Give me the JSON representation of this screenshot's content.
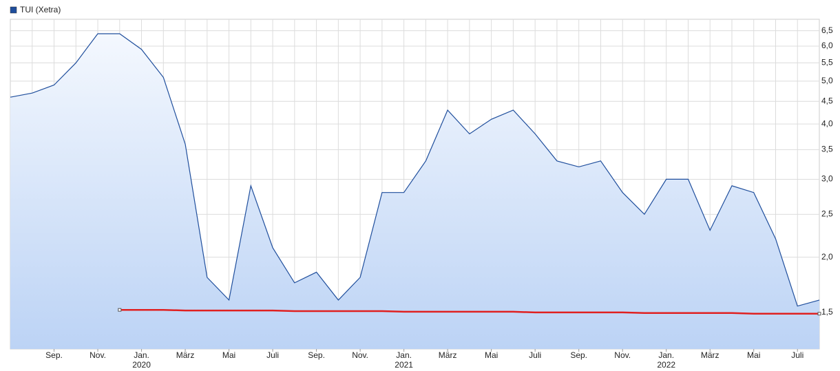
{
  "chart_data": {
    "type": "line",
    "log_scale": true,
    "grid": true,
    "legend": "top-left",
    "x": [
      "2019-07",
      "2019-08",
      "2019-09",
      "2019-10",
      "2019-11",
      "2019-12",
      "2020-01",
      "2020-02",
      "2020-03",
      "2020-04",
      "2020-05",
      "2020-06",
      "2020-07",
      "2020-08",
      "2020-09",
      "2020-10",
      "2020-11",
      "2020-12",
      "2021-01",
      "2021-02",
      "2021-03",
      "2021-04",
      "2021-05",
      "2021-06",
      "2021-07",
      "2021-08",
      "2021-09",
      "2021-10",
      "2021-11",
      "2021-12",
      "2022-01",
      "2022-02",
      "2022-03",
      "2022-04",
      "2022-05",
      "2022-06",
      "2022-07",
      "2022-08"
    ],
    "series": [
      {
        "name": "TUI (Xetra)",
        "color": "#1f4e9c",
        "values": [
          4.6,
          4.7,
          4.9,
          5.5,
          6.4,
          6.4,
          5.9,
          5.1,
          3.6,
          1.8,
          1.6,
          2.9,
          2.1,
          1.75,
          1.85,
          1.6,
          1.8,
          2.8,
          2.8,
          3.3,
          4.3,
          3.8,
          4.1,
          4.3,
          3.8,
          3.3,
          3.2,
          3.3,
          2.8,
          2.5,
          3.0,
          3.0,
          2.3,
          2.9,
          2.8,
          2.2,
          1.55,
          1.6
        ]
      },
      {
        "color": "#e02020",
        "values": [
          null,
          null,
          null,
          null,
          null,
          1.52,
          1.52,
          1.52,
          1.515,
          1.515,
          1.515,
          1.515,
          1.515,
          1.51,
          1.51,
          1.51,
          1.51,
          1.51,
          1.505,
          1.505,
          1.505,
          1.505,
          1.505,
          1.505,
          1.5,
          1.5,
          1.5,
          1.5,
          1.5,
          1.495,
          1.495,
          1.495,
          1.495,
          1.495,
          1.49,
          1.49,
          1.49,
          1.49
        ]
      }
    ],
    "xlim": [
      "2019-07",
      "2022-08"
    ],
    "xticks": [
      {
        "value": "2019-09",
        "label": "Sep."
      },
      {
        "value": "2019-11",
        "label": "Nov."
      },
      {
        "value": "2020-01",
        "label": "Jan.",
        "year": "2020"
      },
      {
        "value": "2020-03",
        "label": "März"
      },
      {
        "value": "2020-05",
        "label": "Mai"
      },
      {
        "value": "2020-07",
        "label": "Juli"
      },
      {
        "value": "2020-09",
        "label": "Sep."
      },
      {
        "value": "2020-11",
        "label": "Nov."
      },
      {
        "value": "2021-01",
        "label": "Jan.",
        "year": "2021"
      },
      {
        "value": "2021-03",
        "label": "März"
      },
      {
        "value": "2021-05",
        "label": "Mai"
      },
      {
        "value": "2021-07",
        "label": "Juli"
      },
      {
        "value": "2021-09",
        "label": "Sep."
      },
      {
        "value": "2021-11",
        "label": "Nov."
      },
      {
        "value": "2022-01",
        "label": "Jan.",
        "year": "2022"
      },
      {
        "value": "2022-03",
        "label": "März"
      },
      {
        "value": "2022-05",
        "label": "Mai"
      },
      {
        "value": "2022-07",
        "label": "Juli"
      }
    ],
    "ylim": [
      1.24,
      6.9
    ],
    "yticks": [
      {
        "value": 1.5,
        "label": "1,5"
      },
      {
        "value": 2,
        "label": "2,0"
      },
      {
        "value": 2.5,
        "label": "2,5"
      },
      {
        "value": 3,
        "label": "3,0"
      },
      {
        "value": 3.5,
        "label": "3,5"
      },
      {
        "value": 4,
        "label": "4,0"
      },
      {
        "value": 4.5,
        "label": "4,5"
      },
      {
        "value": 5,
        "label": "5,0"
      },
      {
        "value": 5.5,
        "label": "5,5"
      },
      {
        "value": 6,
        "label": "6,0"
      },
      {
        "value": 6.5,
        "label": "6,5"
      }
    ]
  }
}
